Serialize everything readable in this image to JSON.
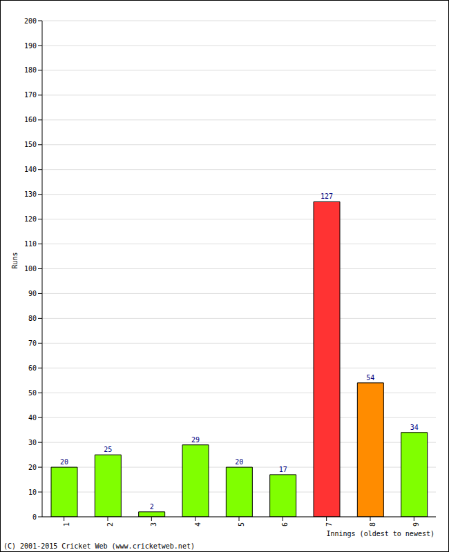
{
  "chart_data": {
    "type": "bar",
    "y_label": "Runs",
    "x_label": "Innings (oldest to newest)",
    "annotations": [
      "(C) 2001-2015 Cricket Web (www.cricketweb.net)"
    ],
    "categories": [
      "1",
      "2",
      "3",
      "4",
      "5",
      "6",
      "7",
      "8",
      "9"
    ],
    "values": [
      20,
      25,
      2,
      29,
      20,
      17,
      127,
      54,
      34
    ],
    "colors": [
      "#80ff00",
      "#80ff00",
      "#80ff00",
      "#80ff00",
      "#80ff00",
      "#80ff00",
      "#ff3333",
      "#ff8c00",
      "#80ff00"
    ],
    "ylim": [
      0,
      200
    ],
    "yticks": [
      0,
      10,
      20,
      30,
      40,
      50,
      60,
      70,
      80,
      90,
      100,
      110,
      120,
      130,
      140,
      150,
      160,
      170,
      180,
      190,
      200
    ],
    "grid": true,
    "data_labels": true
  }
}
